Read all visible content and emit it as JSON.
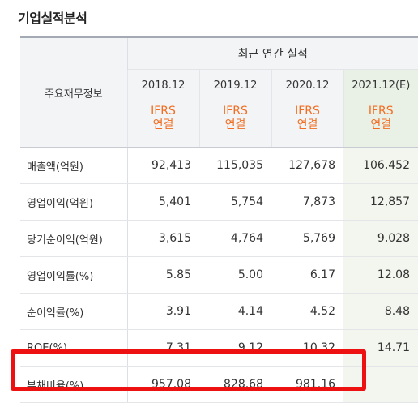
{
  "section_title": "기업실적분석",
  "header": {
    "group_label": "최근 연간 실적",
    "row_label": "주요재무정보",
    "periods": [
      "2018.12",
      "2019.12",
      "2020.12",
      "2021.12(E)"
    ],
    "basis_line1": "IFRS",
    "basis_line2": "연결"
  },
  "rows": [
    {
      "label": "매출액(억원)",
      "values": [
        "92,413",
        "115,035",
        "127,678",
        "106,452"
      ]
    },
    {
      "label": "영업이익(억원)",
      "values": [
        "5,401",
        "5,754",
        "7,873",
        "12,857"
      ]
    },
    {
      "label": "당기순이익(억원)",
      "values": [
        "3,615",
        "4,764",
        "5,769",
        "9,028"
      ]
    },
    {
      "label": "영업이익률(%)",
      "values": [
        "5.85",
        "5.00",
        "6.17",
        "12.08"
      ]
    },
    {
      "label": "순이익률(%)",
      "values": [
        "3.91",
        "4.14",
        "4.52",
        "8.48"
      ]
    },
    {
      "label": "ROE(%)",
      "values": [
        "7.31",
        "9.12",
        "10.32",
        "14.71"
      ]
    },
    {
      "label": "부채비율(%)",
      "values": [
        "957.08",
        "828.68",
        "981.16",
        ""
      ]
    }
  ],
  "colors": {
    "ifrs_text": "#f26d21",
    "estimate_bg": "#e9f1e6",
    "highlight_border": "#ee1111"
  }
}
